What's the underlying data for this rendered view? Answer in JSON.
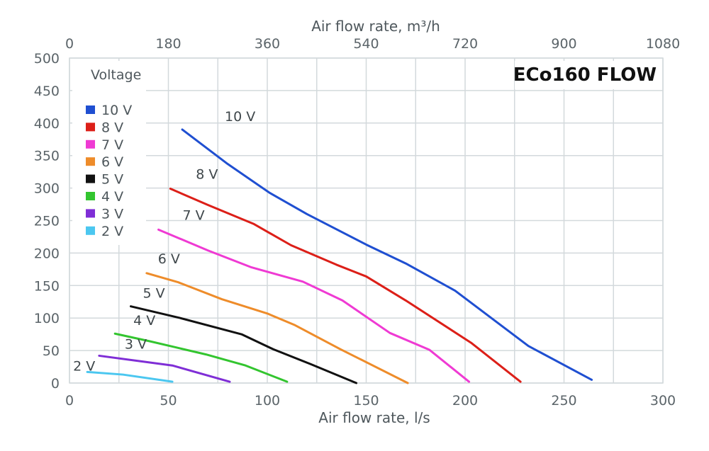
{
  "chart_data": {
    "type": "line",
    "title": "ECo160 FLOW",
    "xlabel": "Air flow rate, l/s",
    "x2label": "Air flow rate, m³/h",
    "ylabel": "",
    "xlim": [
      0,
      300
    ],
    "ylim": [
      0,
      500
    ],
    "x2lim": [
      0,
      1080
    ],
    "xticks": [
      "0",
      "50",
      "100",
      "150",
      "200",
      "250",
      "300"
    ],
    "x2ticks": [
      "0",
      "180",
      "360",
      "540",
      "720",
      "900",
      "1080"
    ],
    "yticks": [
      "0",
      "50",
      "100",
      "150",
      "200",
      "250",
      "300",
      "350",
      "400",
      "450",
      "500"
    ],
    "grid": true,
    "legend_title": "Voltage",
    "legend_position": "top-left",
    "series": [
      {
        "name": "10 V",
        "color": "#1f4fd1",
        "label": "10 V",
        "x": [
          57,
          80,
          101,
          120,
          150,
          170,
          195,
          232,
          264
        ],
        "y": [
          390,
          337,
          293,
          260,
          213,
          184,
          142,
          57,
          5
        ]
      },
      {
        "name": "8 V",
        "color": "#dc1f18",
        "label": "8 V",
        "x": [
          51,
          70,
          93,
          112,
          135,
          150,
          170,
          203,
          228
        ],
        "y": [
          299,
          274,
          245,
          212,
          182,
          164,
          127,
          62,
          2
        ]
      },
      {
        "name": "7 V",
        "color": "#ef3ad3",
        "label": "7 V",
        "x": [
          45,
          70,
          92,
          118,
          138,
          162,
          182,
          202
        ],
        "y": [
          236,
          204,
          178,
          156,
          127,
          77,
          51,
          2
        ]
      },
      {
        "name": "6 V",
        "color": "#ee8c2a",
        "label": "6 V",
        "x": [
          39,
          55,
          77,
          100,
          114,
          137,
          171
        ],
        "y": [
          169,
          155,
          129,
          107,
          89,
          52,
          0
        ]
      },
      {
        "name": "5 V",
        "color": "#111111",
        "label": "5 V",
        "x": [
          31,
          56,
          87,
          103,
          122,
          145
        ],
        "y": [
          118,
          100,
          75,
          52,
          29,
          0
        ]
      },
      {
        "name": "4 V",
        "color": "#33c52f",
        "label": "4 V",
        "x": [
          23,
          41,
          69,
          89,
          110
        ],
        "y": [
          76,
          64,
          44,
          27,
          2
        ]
      },
      {
        "name": "3 V",
        "color": "#7f2ed6",
        "label": "3 V",
        "x": [
          15,
          52,
          81
        ],
        "y": [
          42,
          27,
          2
        ]
      },
      {
        "name": "2 V",
        "color": "#4bc7f0",
        "label": "2 V",
        "x": [
          9,
          27,
          52
        ],
        "y": [
          17,
          13,
          2
        ]
      }
    ]
  }
}
